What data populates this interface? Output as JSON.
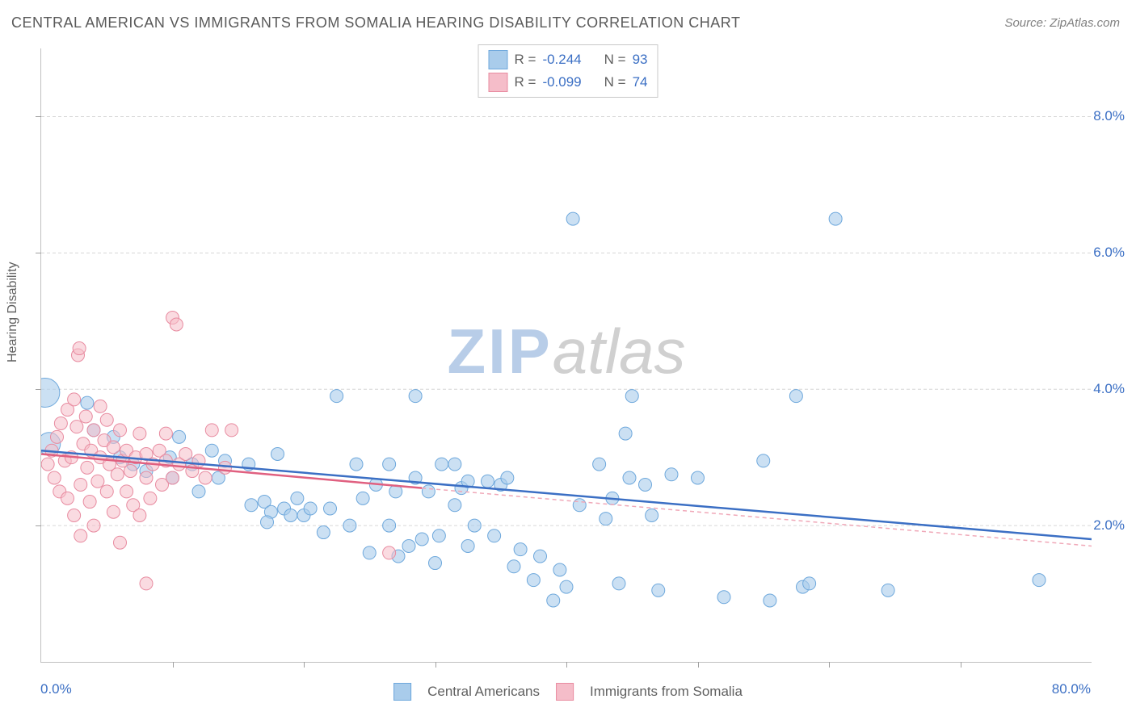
{
  "title": "CENTRAL AMERICAN VS IMMIGRANTS FROM SOMALIA HEARING DISABILITY CORRELATION CHART",
  "source_text": "Source: ZipAtlas.com",
  "ylabel": "Hearing Disability",
  "watermark": {
    "part1": "ZIP",
    "part2": "atlas"
  },
  "chart": {
    "type": "scatter",
    "xlim": [
      0,
      80
    ],
    "ylim": [
      0,
      9
    ],
    "xtick_labels": [
      "0.0%",
      "80.0%"
    ],
    "xtick_values": [
      0,
      80
    ],
    "xtick_minor": [
      10,
      20,
      30,
      40,
      50,
      60,
      70
    ],
    "ytick_labels": [
      "2.0%",
      "4.0%",
      "6.0%",
      "8.0%"
    ],
    "ytick_values": [
      2,
      4,
      6,
      8
    ],
    "grid_color": "#d6d6d6",
    "axis_color": "#c0c0c0",
    "background_color": "#ffffff"
  },
  "series": [
    {
      "name": "Central Americans",
      "color_fill": "#a9cceb",
      "color_stroke": "#6ea8dc",
      "R": "-0.244",
      "N": "93",
      "trend": {
        "x1": 0,
        "y1": 3.1,
        "x2": 80,
        "y2": 1.8,
        "color": "#3b6fc4",
        "width": 2.5,
        "dash": "none"
      },
      "marker_radius": 8,
      "marker_opacity": 0.6,
      "points": [
        {
          "x": 0.3,
          "y": 3.95,
          "r": 18
        },
        {
          "x": 0.6,
          "y": 3.2,
          "r": 14
        },
        {
          "x": 40.5,
          "y": 6.5,
          "r": 8
        },
        {
          "x": 60.5,
          "y": 6.5,
          "r": 8
        },
        {
          "x": 4,
          "y": 3.4,
          "r": 8
        },
        {
          "x": 3.5,
          "y": 3.8,
          "r": 8
        },
        {
          "x": 6,
          "y": 3.0,
          "r": 8
        },
        {
          "x": 5.5,
          "y": 3.3,
          "r": 8
        },
        {
          "x": 7,
          "y": 2.9,
          "r": 8
        },
        {
          "x": 8,
          "y": 2.8,
          "r": 8
        },
        {
          "x": 10,
          "y": 2.7,
          "r": 8
        },
        {
          "x": 9.8,
          "y": 3.0,
          "r": 8
        },
        {
          "x": 10.5,
          "y": 3.3,
          "r": 8
        },
        {
          "x": 11.5,
          "y": 2.9,
          "r": 8
        },
        {
          "x": 12,
          "y": 2.5,
          "r": 8
        },
        {
          "x": 13,
          "y": 3.1,
          "r": 8
        },
        {
          "x": 13.5,
          "y": 2.7,
          "r": 8
        },
        {
          "x": 14,
          "y": 2.95,
          "r": 8
        },
        {
          "x": 15.8,
          "y": 2.9,
          "r": 8
        },
        {
          "x": 16,
          "y": 2.3,
          "r": 8
        },
        {
          "x": 17,
          "y": 2.35,
          "r": 8
        },
        {
          "x": 17.5,
          "y": 2.2,
          "r": 8
        },
        {
          "x": 17.2,
          "y": 2.05,
          "r": 8
        },
        {
          "x": 18,
          "y": 3.05,
          "r": 8
        },
        {
          "x": 18.5,
          "y": 2.25,
          "r": 8
        },
        {
          "x": 19,
          "y": 2.15,
          "r": 8
        },
        {
          "x": 19.5,
          "y": 2.4,
          "r": 8
        },
        {
          "x": 20,
          "y": 2.15,
          "r": 8
        },
        {
          "x": 20.5,
          "y": 2.25,
          "r": 8
        },
        {
          "x": 21.5,
          "y": 1.9,
          "r": 8
        },
        {
          "x": 22,
          "y": 2.25,
          "r": 8
        },
        {
          "x": 22.5,
          "y": 3.9,
          "r": 8
        },
        {
          "x": 23.5,
          "y": 2.0,
          "r": 8
        },
        {
          "x": 24,
          "y": 2.9,
          "r": 8
        },
        {
          "x": 24.5,
          "y": 2.4,
          "r": 8
        },
        {
          "x": 25.5,
          "y": 2.6,
          "r": 8
        },
        {
          "x": 25,
          "y": 1.6,
          "r": 8
        },
        {
          "x": 26.5,
          "y": 2.9,
          "r": 8
        },
        {
          "x": 26.5,
          "y": 2.0,
          "r": 8
        },
        {
          "x": 27.2,
          "y": 1.55,
          "r": 8
        },
        {
          "x": 27,
          "y": 2.5,
          "r": 8
        },
        {
          "x": 28,
          "y": 1.7,
          "r": 8
        },
        {
          "x": 28.5,
          "y": 3.9,
          "r": 8
        },
        {
          "x": 28.5,
          "y": 2.7,
          "r": 8
        },
        {
          "x": 29,
          "y": 1.8,
          "r": 8
        },
        {
          "x": 29.5,
          "y": 2.5,
          "r": 8
        },
        {
          "x": 30,
          "y": 1.45,
          "r": 8
        },
        {
          "x": 30.5,
          "y": 2.9,
          "r": 8
        },
        {
          "x": 30.3,
          "y": 1.85,
          "r": 8
        },
        {
          "x": 31.5,
          "y": 2.9,
          "r": 8
        },
        {
          "x": 31.5,
          "y": 2.3,
          "r": 8
        },
        {
          "x": 32,
          "y": 2.55,
          "r": 8
        },
        {
          "x": 32.5,
          "y": 2.65,
          "r": 8
        },
        {
          "x": 32.5,
          "y": 1.7,
          "r": 8
        },
        {
          "x": 33,
          "y": 2.0,
          "r": 8
        },
        {
          "x": 34,
          "y": 2.65,
          "r": 8
        },
        {
          "x": 34.5,
          "y": 1.85,
          "r": 8
        },
        {
          "x": 35,
          "y": 2.6,
          "r": 8
        },
        {
          "x": 35.5,
          "y": 2.7,
          "r": 8
        },
        {
          "x": 36,
          "y": 1.4,
          "r": 8
        },
        {
          "x": 36.5,
          "y": 1.65,
          "r": 8
        },
        {
          "x": 37.5,
          "y": 1.2,
          "r": 8
        },
        {
          "x": 38,
          "y": 1.55,
          "r": 8
        },
        {
          "x": 39,
          "y": 0.9,
          "r": 8
        },
        {
          "x": 39.5,
          "y": 1.35,
          "r": 8
        },
        {
          "x": 40,
          "y": 1.1,
          "r": 8
        },
        {
          "x": 41,
          "y": 2.3,
          "r": 8
        },
        {
          "x": 42.5,
          "y": 2.9,
          "r": 8
        },
        {
          "x": 43,
          "y": 2.1,
          "r": 8
        },
        {
          "x": 43.5,
          "y": 2.4,
          "r": 8
        },
        {
          "x": 44.5,
          "y": 3.35,
          "r": 8
        },
        {
          "x": 44.8,
          "y": 2.7,
          "r": 8
        },
        {
          "x": 45,
          "y": 3.9,
          "r": 8
        },
        {
          "x": 44,
          "y": 1.15,
          "r": 8
        },
        {
          "x": 46,
          "y": 2.6,
          "r": 8
        },
        {
          "x": 46.5,
          "y": 2.15,
          "r": 8
        },
        {
          "x": 47,
          "y": 1.05,
          "r": 8
        },
        {
          "x": 48,
          "y": 2.75,
          "r": 8
        },
        {
          "x": 50,
          "y": 2.7,
          "r": 8
        },
        {
          "x": 52,
          "y": 0.95,
          "r": 8
        },
        {
          "x": 55,
          "y": 2.95,
          "r": 8
        },
        {
          "x": 55.5,
          "y": 0.9,
          "r": 8
        },
        {
          "x": 57.5,
          "y": 3.9,
          "r": 8
        },
        {
          "x": 58,
          "y": 1.1,
          "r": 8
        },
        {
          "x": 58.5,
          "y": 1.15,
          "r": 8
        },
        {
          "x": 64.5,
          "y": 1.05,
          "r": 8
        },
        {
          "x": 76,
          "y": 1.2,
          "r": 8
        }
      ]
    },
    {
      "name": "Immigrants from Somalia",
      "color_fill": "#f5bdc9",
      "color_stroke": "#e88ba0",
      "R": "-0.099",
      "N": "74",
      "trend": {
        "x1": 0,
        "y1": 3.05,
        "x2": 29,
        "y2": 2.55,
        "color": "#e06080",
        "width": 2.5,
        "dash": "none"
      },
      "trend_dashed": {
        "x1": 29,
        "y1": 2.55,
        "x2": 80,
        "y2": 1.7,
        "color": "#f0a8b8",
        "width": 1.5,
        "dash": "5,4"
      },
      "marker_radius": 8,
      "marker_opacity": 0.55,
      "points": [
        {
          "x": 0.5,
          "y": 2.9,
          "r": 8
        },
        {
          "x": 0.8,
          "y": 3.1,
          "r": 8
        },
        {
          "x": 1.0,
          "y": 2.7,
          "r": 8
        },
        {
          "x": 1.2,
          "y": 3.3,
          "r": 8
        },
        {
          "x": 1.4,
          "y": 2.5,
          "r": 8
        },
        {
          "x": 1.5,
          "y": 3.5,
          "r": 8
        },
        {
          "x": 1.8,
          "y": 2.95,
          "r": 8
        },
        {
          "x": 2.0,
          "y": 2.4,
          "r": 8
        },
        {
          "x": 2.0,
          "y": 3.7,
          "r": 8
        },
        {
          "x": 2.3,
          "y": 3.0,
          "r": 8
        },
        {
          "x": 2.5,
          "y": 3.85,
          "r": 8
        },
        {
          "x": 2.5,
          "y": 2.15,
          "r": 8
        },
        {
          "x": 2.7,
          "y": 3.45,
          "r": 8
        },
        {
          "x": 2.8,
          "y": 4.5,
          "r": 8
        },
        {
          "x": 2.9,
          "y": 4.6,
          "r": 8
        },
        {
          "x": 3.0,
          "y": 2.6,
          "r": 8
        },
        {
          "x": 3.0,
          "y": 1.85,
          "r": 8
        },
        {
          "x": 3.2,
          "y": 3.2,
          "r": 8
        },
        {
          "x": 3.4,
          "y": 3.6,
          "r": 8
        },
        {
          "x": 3.5,
          "y": 2.85,
          "r": 8
        },
        {
          "x": 3.7,
          "y": 2.35,
          "r": 8
        },
        {
          "x": 3.8,
          "y": 3.1,
          "r": 8
        },
        {
          "x": 4.0,
          "y": 3.4,
          "r": 8
        },
        {
          "x": 4.0,
          "y": 2.0,
          "r": 8
        },
        {
          "x": 4.3,
          "y": 2.65,
          "r": 8
        },
        {
          "x": 4.5,
          "y": 3.75,
          "r": 8
        },
        {
          "x": 4.5,
          "y": 3.0,
          "r": 8
        },
        {
          "x": 4.8,
          "y": 3.25,
          "r": 8
        },
        {
          "x": 5.0,
          "y": 2.5,
          "r": 8
        },
        {
          "x": 5.0,
          "y": 3.55,
          "r": 8
        },
        {
          "x": 5.2,
          "y": 2.9,
          "r": 8
        },
        {
          "x": 5.5,
          "y": 2.2,
          "r": 8
        },
        {
          "x": 5.5,
          "y": 3.15,
          "r": 8
        },
        {
          "x": 5.8,
          "y": 2.75,
          "r": 8
        },
        {
          "x": 6.0,
          "y": 3.4,
          "r": 8
        },
        {
          "x": 6.0,
          "y": 1.75,
          "r": 8
        },
        {
          "x": 6.2,
          "y": 2.95,
          "r": 8
        },
        {
          "x": 6.5,
          "y": 3.1,
          "r": 8
        },
        {
          "x": 6.5,
          "y": 2.5,
          "r": 8
        },
        {
          "x": 6.8,
          "y": 2.8,
          "r": 8
        },
        {
          "x": 7.0,
          "y": 2.3,
          "r": 8
        },
        {
          "x": 7.2,
          "y": 3.0,
          "r": 8
        },
        {
          "x": 7.5,
          "y": 2.15,
          "r": 8
        },
        {
          "x": 7.5,
          "y": 3.35,
          "r": 8
        },
        {
          "x": 8.0,
          "y": 2.7,
          "r": 8
        },
        {
          "x": 8.0,
          "y": 3.05,
          "r": 8
        },
        {
          "x": 8.3,
          "y": 2.4,
          "r": 8
        },
        {
          "x": 8.5,
          "y": 2.9,
          "r": 8
        },
        {
          "x": 8,
          "y": 1.15,
          "r": 8
        },
        {
          "x": 9.0,
          "y": 3.1,
          "r": 8
        },
        {
          "x": 9.2,
          "y": 2.6,
          "r": 8
        },
        {
          "x": 9.5,
          "y": 2.95,
          "r": 8
        },
        {
          "x": 9.5,
          "y": 3.35,
          "r": 8
        },
        {
          "x": 10.0,
          "y": 5.05,
          "r": 8
        },
        {
          "x": 10.0,
          "y": 2.7,
          "r": 8
        },
        {
          "x": 10.3,
          "y": 4.95,
          "r": 8
        },
        {
          "x": 10.5,
          "y": 2.9,
          "r": 8
        },
        {
          "x": 11.0,
          "y": 3.05,
          "r": 8
        },
        {
          "x": 11.5,
          "y": 2.8,
          "r": 8
        },
        {
          "x": 12.0,
          "y": 2.95,
          "r": 8
        },
        {
          "x": 12.5,
          "y": 2.7,
          "r": 8
        },
        {
          "x": 13.0,
          "y": 3.4,
          "r": 8
        },
        {
          "x": 14.0,
          "y": 2.85,
          "r": 8
        },
        {
          "x": 14.5,
          "y": 3.4,
          "r": 8
        },
        {
          "x": 26.5,
          "y": 1.6,
          "r": 8
        }
      ]
    }
  ],
  "legend_top_labels": {
    "R": "R =",
    "N": "N ="
  },
  "legend_bottom_labels": [
    "Central Americans",
    "Immigrants from Somalia"
  ]
}
